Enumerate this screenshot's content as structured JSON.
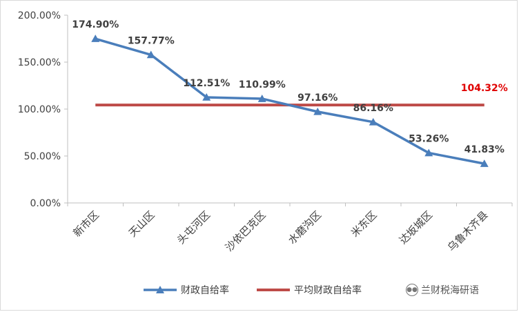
{
  "chart_data": {
    "type": "line",
    "categories": [
      "新市区",
      "天山区",
      "头屯河区",
      "沙依巴克区",
      "水磨沟区",
      "米东区",
      "达坂城区",
      "乌鲁木齐县"
    ],
    "y_tick_labels": [
      "0.00%",
      "50.00%",
      "100.00%",
      "150.00%",
      "200.00%"
    ],
    "ylim": [
      0,
      200
    ],
    "grid": false,
    "legend_position": "bottom",
    "series": [
      {
        "name": "财政自给率",
        "values": [
          174.9,
          157.77,
          112.51,
          110.99,
          97.16,
          86.16,
          53.26,
          41.83
        ],
        "labels": [
          "174.90%",
          "157.77%",
          "112.51%",
          "110.99%",
          "97.16%",
          "86.16%",
          "53.26%",
          "41.83%"
        ],
        "color": "#4a7ebb",
        "marker": "triangle"
      },
      {
        "name": "平均财政自给率",
        "values": [
          104.32,
          104.32,
          104.32,
          104.32,
          104.32,
          104.32,
          104.32,
          104.32
        ],
        "label": "104.32%",
        "label_color": "#e00000",
        "color": "#be4b48"
      }
    ]
  },
  "watermark": {
    "text": "兰财税海研语",
    "icon": "wechat-icon"
  }
}
